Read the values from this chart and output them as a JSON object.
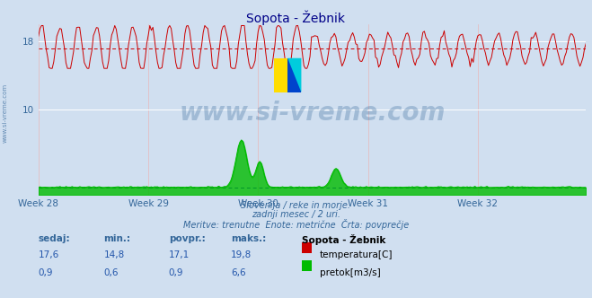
{
  "title": "Sopota - Žebnik",
  "bg_color": "#d0dff0",
  "plot_bg_color": "#d0dff0",
  "temp_color": "#cc0000",
  "flow_color": "#00bb00",
  "avg_temp_color": "#cc0000",
  "avg_flow_color": "#0000cc",
  "week_labels": [
    "Week 28",
    "Week 29",
    "Week 30",
    "Week 31",
    "Week 32"
  ],
  "n_points": 360,
  "temp_min": 14.8,
  "temp_max": 19.8,
  "temp_avg": 17.1,
  "flow_max": 6.6,
  "flow_avg": 0.9,
  "subtitle1": "Slovenija / reke in morje.",
  "subtitle2": "zadnji mesec / 2 uri.",
  "subtitle3": "Meritve: trenutne  Enote: metrične  Črta: povprečje",
  "text_color": "#336699",
  "label_sedaj": "sedaj:",
  "label_min": "min.:",
  "label_povpr": "povpr.:",
  "label_maks": "maks.:",
  "label_station": "Sopota - Žebnik",
  "label_temp": "temperatura[C]",
  "label_flow": "pretok[m3/s]",
  "watermark": "www.si-vreme.com",
  "val_sedaj_temp": "17,6",
  "val_min_temp": "14,8",
  "val_povpr_temp": "17,1",
  "val_maks_temp": "19,8",
  "val_sedaj_flow": "0,9",
  "val_min_flow": "0,6",
  "val_povpr_flow": "0,9",
  "val_maks_flow": "6,6"
}
